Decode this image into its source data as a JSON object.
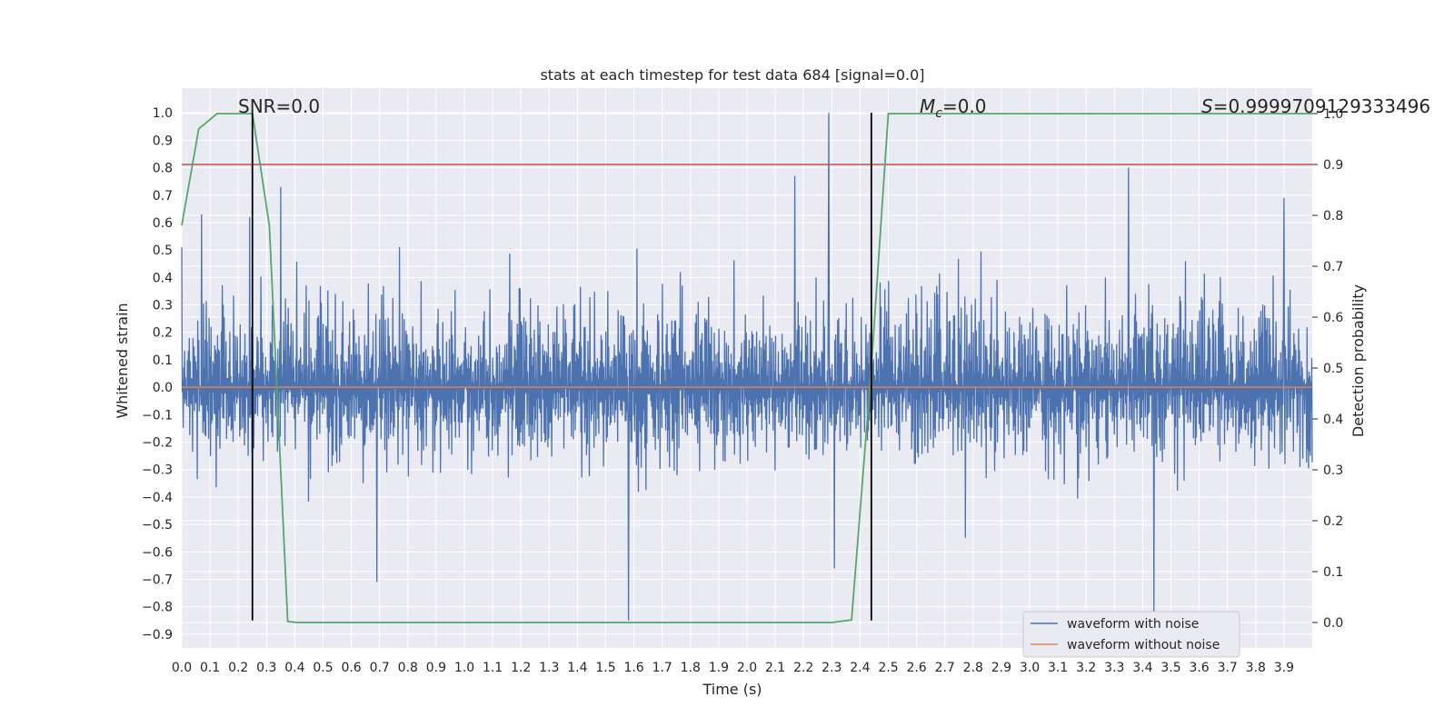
{
  "chart_data": {
    "type": "line",
    "title": "stats at each timestep for test data 684 [signal=0.0]",
    "xlabel": "Time (s)",
    "ylabel": "Whitened strain",
    "y2label": "Detection probability",
    "xlim": [
      0.0,
      4.0
    ],
    "ylim": [
      -0.95,
      1.09
    ],
    "y2lim": [
      -0.05,
      1.05
    ],
    "x_ticks": [
      0.0,
      0.1,
      0.2,
      0.3,
      0.4,
      0.5,
      0.6,
      0.7,
      0.8,
      0.9,
      1.0,
      1.1,
      1.2,
      1.3,
      1.4,
      1.5,
      1.6,
      1.7,
      1.8,
      1.9,
      2.0,
      2.1,
      2.2,
      2.3,
      2.4,
      2.5,
      2.6,
      2.7,
      2.8,
      2.9,
      3.0,
      3.1,
      3.2,
      3.3,
      3.4,
      3.5,
      3.6,
      3.7,
      3.8,
      3.9
    ],
    "y_ticks": [
      1.0,
      0.9,
      0.8,
      0.7,
      0.6,
      0.5,
      0.4,
      0.3,
      0.2,
      0.1,
      0.0,
      -0.1,
      -0.2,
      -0.3,
      -0.4,
      -0.5,
      -0.6,
      -0.7,
      -0.8,
      -0.9
    ],
    "y2_ticks": [
      1.0,
      0.9,
      0.8,
      0.7,
      0.6,
      0.5,
      0.4,
      0.3,
      0.2,
      0.1,
      0.0
    ],
    "grid": true,
    "legend_position": "bottom-right",
    "annotations": {
      "snr": "SNR=0.0",
      "mc_symbol": "M",
      "mc_sub": "c",
      "mc_value": "=0.0",
      "s_symbol": "S",
      "s_value": "=0.9999709129333496"
    },
    "series": [
      {
        "name": "waveform with noise",
        "color": "#4c72b0",
        "noise_envelope": {
          "typical_high": 0.3,
          "typical_low": -0.35,
          "peak_max": 1.0,
          "peak_min": -0.85
        },
        "spikes": [
          {
            "x": 2.29,
            "y": 1.0
          },
          {
            "x": 3.35,
            "y": 0.8
          },
          {
            "x": 2.17,
            "y": 0.77
          },
          {
            "x": 3.9,
            "y": 0.69
          },
          {
            "x": 0.35,
            "y": 0.73
          },
          {
            "x": 1.58,
            "y": -0.85
          },
          {
            "x": 3.44,
            "y": -0.82
          },
          {
            "x": 0.07,
            "y": 0.63
          },
          {
            "x": 0.24,
            "y": 0.62
          },
          {
            "x": 2.31,
            "y": -0.66
          },
          {
            "x": 0.69,
            "y": -0.71
          }
        ]
      },
      {
        "name": "waveform without noise",
        "color": "#dd8452",
        "x": [
          0.0,
          4.0
        ],
        "y": [
          0.0,
          0.0
        ]
      },
      {
        "name": "",
        "color": "#55a868",
        "axis": "right",
        "x": [
          0.0,
          0.06,
          0.125,
          0.25,
          0.31,
          0.375,
          0.41,
          1.0,
          2.0,
          2.3,
          2.37,
          2.44,
          2.5,
          4.0
        ],
        "y": [
          0.78,
          0.97,
          1.0,
          1.0,
          0.78,
          0.002,
          0.0,
          0.0,
          0.0,
          0.0,
          0.005,
          0.5,
          1.0,
          1.0
        ]
      }
    ],
    "hlines": [
      {
        "axis": "right",
        "y": 0.9,
        "color": "#c44e52"
      }
    ],
    "vlines": [
      {
        "x": 0.25,
        "y_range": [
          -0.85,
          1.0
        ],
        "color": "#000000"
      },
      {
        "x": 2.44,
        "y_range": [
          -0.85,
          1.0
        ],
        "color": "#000000"
      }
    ]
  }
}
